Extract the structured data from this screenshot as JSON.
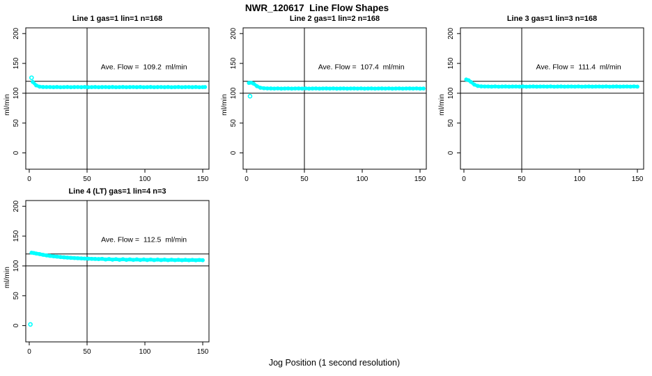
{
  "title": "NWR_120617  Line Flow Shapes",
  "x_axis_label": "Jog Position (1 second resolution)",
  "colors": {
    "points": "#00ffff",
    "axis": "#000000",
    "reference_lines": "#000000",
    "background": "#ffffff"
  },
  "chart_data": {
    "type": "scatter",
    "title": "NWR_120617  Line Flow Shapes",
    "xlabel": "Jog Position (1 second resolution)",
    "ylabel": "ml/min",
    "x_ticks": [
      0,
      50,
      100,
      150
    ],
    "y_ticks": [
      0,
      50,
      100,
      150,
      200
    ],
    "xlim": [
      -3,
      155.4
    ],
    "ylim": [
      -27.3,
      209.6
    ],
    "grid": false,
    "reference_lines": {
      "horizontal": [
        100,
        120
      ],
      "vertical": [
        50
      ]
    },
    "marker": "open-circle",
    "panels": [
      {
        "title": "Line 1 gas=1 lin=1 n=168",
        "annotation": "Ave. Flow =  109.2  ml/min",
        "ave_flow_ml_min": 109.2,
        "outliers": [
          [
            2,
            126
          ]
        ],
        "points": [
          [
            3,
            119
          ],
          [
            6,
            113.2
          ],
          [
            9,
            111
          ],
          [
            12,
            110.5
          ],
          [
            15,
            110.4
          ],
          [
            18,
            110.4
          ],
          [
            21,
            110.2
          ],
          [
            24,
            110.5
          ],
          [
            27,
            110.1
          ],
          [
            30,
            110.3
          ],
          [
            33,
            110.45
          ],
          [
            36,
            110.15
          ],
          [
            39,
            110.35
          ],
          [
            42,
            110.4
          ],
          [
            45,
            110.2
          ],
          [
            48,
            110.5
          ],
          [
            51,
            110.1
          ],
          [
            54,
            110.3
          ],
          [
            57,
            110.45
          ],
          [
            60,
            110.15
          ],
          [
            63,
            110.35
          ],
          [
            66,
            110.4
          ],
          [
            69,
            110.2
          ],
          [
            72,
            110.5
          ],
          [
            75,
            110.1
          ],
          [
            78,
            110.3
          ],
          [
            81,
            110.45
          ],
          [
            84,
            110.15
          ],
          [
            87,
            110.35
          ],
          [
            90,
            110.4
          ],
          [
            93,
            110.2
          ],
          [
            96,
            110.5
          ],
          [
            99,
            110.1
          ],
          [
            102,
            110.3
          ],
          [
            105,
            110.45
          ],
          [
            108,
            110.15
          ],
          [
            111,
            110.35
          ],
          [
            114,
            110.4
          ],
          [
            117,
            110.2
          ],
          [
            120,
            110.5
          ],
          [
            123,
            110.1
          ],
          [
            126,
            110.3
          ],
          [
            129,
            110.45
          ],
          [
            132,
            110.15
          ],
          [
            135,
            110.35
          ],
          [
            138,
            110.4
          ],
          [
            141,
            110.2
          ],
          [
            144,
            110.5
          ],
          [
            147,
            110.1
          ],
          [
            150,
            110.3
          ],
          [
            152,
            110.4
          ]
        ]
      },
      {
        "title": "Line 2 gas=1 lin=2 n=168",
        "annotation": "Ave. Flow =  107.4  ml/min",
        "ave_flow_ml_min": 107.4,
        "outliers": [
          [
            3,
            95
          ]
        ],
        "points": [
          [
            2,
            117.3
          ],
          [
            4,
            117.7
          ],
          [
            6,
            116.2
          ],
          [
            9,
            111.8
          ],
          [
            12,
            109.2
          ],
          [
            15,
            108.4
          ],
          [
            18,
            108.1
          ],
          [
            21,
            108
          ],
          [
            24,
            107.8
          ],
          [
            27,
            108.1
          ],
          [
            30,
            107.7
          ],
          [
            33,
            107.9
          ],
          [
            36,
            108.05
          ],
          [
            39,
            107.75
          ],
          [
            42,
            107.95
          ],
          [
            45,
            108
          ],
          [
            48,
            107.8
          ],
          [
            51,
            108.1
          ],
          [
            54,
            107.7
          ],
          [
            57,
            107.9
          ],
          [
            60,
            108.05
          ],
          [
            63,
            107.75
          ],
          [
            66,
            107.95
          ],
          [
            69,
            108
          ],
          [
            72,
            107.8
          ],
          [
            75,
            108.1
          ],
          [
            78,
            107.7
          ],
          [
            81,
            107.9
          ],
          [
            84,
            108.05
          ],
          [
            87,
            107.75
          ],
          [
            90,
            107.95
          ],
          [
            93,
            108
          ],
          [
            96,
            107.8
          ],
          [
            99,
            108.1
          ],
          [
            102,
            107.7
          ],
          [
            105,
            107.9
          ],
          [
            108,
            108.05
          ],
          [
            111,
            107.75
          ],
          [
            114,
            107.95
          ],
          [
            117,
            108
          ],
          [
            120,
            107.8
          ],
          [
            123,
            108.1
          ],
          [
            126,
            107.7
          ],
          [
            129,
            107.9
          ],
          [
            132,
            108.05
          ],
          [
            135,
            107.75
          ],
          [
            138,
            107.95
          ],
          [
            141,
            108
          ],
          [
            144,
            107.8
          ],
          [
            147,
            108.1
          ],
          [
            150,
            107.7
          ],
          [
            153,
            107.9
          ]
        ]
      },
      {
        "title": "Line 3 gas=1 lin=3 n=168",
        "annotation": "Ave. Flow =  111.4  ml/min",
        "ave_flow_ml_min": 111.4,
        "outliers": [],
        "points": [
          [
            2,
            123
          ],
          [
            4,
            121.8
          ],
          [
            6,
            119
          ],
          [
            9,
            114.5
          ],
          [
            12,
            112.2
          ],
          [
            15,
            111.5
          ],
          [
            18,
            111.3
          ],
          [
            21,
            111.3
          ],
          [
            24,
            111.1
          ],
          [
            27,
            111.4
          ],
          [
            30,
            111
          ],
          [
            33,
            111.2
          ],
          [
            36,
            111.35
          ],
          [
            39,
            111.05
          ],
          [
            42,
            111.25
          ],
          [
            45,
            111.3
          ],
          [
            48,
            111.1
          ],
          [
            51,
            111.4
          ],
          [
            54,
            111
          ],
          [
            57,
            111.2
          ],
          [
            60,
            111.35
          ],
          [
            63,
            111.05
          ],
          [
            66,
            111.25
          ],
          [
            69,
            111.3
          ],
          [
            72,
            111.1
          ],
          [
            75,
            111.4
          ],
          [
            78,
            111
          ],
          [
            81,
            111.2
          ],
          [
            84,
            111.35
          ],
          [
            87,
            111.05
          ],
          [
            90,
            111.25
          ],
          [
            93,
            111.3
          ],
          [
            96,
            111.1
          ],
          [
            99,
            111.4
          ],
          [
            102,
            111
          ],
          [
            105,
            111.2
          ],
          [
            108,
            111.35
          ],
          [
            111,
            111.05
          ],
          [
            114,
            111.25
          ],
          [
            117,
            111.3
          ],
          [
            120,
            111.1
          ],
          [
            123,
            111.4
          ],
          [
            126,
            111
          ],
          [
            129,
            111.2
          ],
          [
            132,
            111.35
          ],
          [
            135,
            111.05
          ],
          [
            138,
            111.25
          ],
          [
            141,
            111.3
          ],
          [
            144,
            111.1
          ],
          [
            147,
            111.4
          ],
          [
            150,
            111.1
          ]
        ]
      },
      {
        "title": "Line 4 (LT) gas=1 lin=4 n=3",
        "annotation": "Ave. Flow =  112.5  ml/min",
        "ave_flow_ml_min": 112.5,
        "outliers": [
          [
            1,
            2
          ]
        ],
        "points": [
          [
            2,
            122.2
          ],
          [
            4,
            121.6
          ],
          [
            6,
            120.8
          ],
          [
            9,
            119.8
          ],
          [
            12,
            118.6
          ],
          [
            15,
            117.6
          ],
          [
            18,
            116.8
          ],
          [
            21,
            116.1
          ],
          [
            24,
            115.5
          ],
          [
            27,
            114.9
          ],
          [
            30,
            114.4
          ],
          [
            33,
            113.9
          ],
          [
            36,
            113.5
          ],
          [
            39,
            113.2
          ],
          [
            42,
            112.9
          ],
          [
            45,
            112.6
          ],
          [
            48,
            112.3
          ],
          [
            51,
            112.1
          ],
          [
            54,
            111.9
          ],
          [
            57,
            111.7
          ],
          [
            60,
            111.5
          ],
          [
            63,
            111.9
          ],
          [
            66,
            110.8
          ],
          [
            69,
            111.6
          ],
          [
            72,
            110.5
          ],
          [
            75,
            111.3
          ],
          [
            78,
            110.3
          ],
          [
            81,
            111.2
          ],
          [
            84,
            110.2
          ],
          [
            87,
            111
          ],
          [
            90,
            110.1
          ],
          [
            93,
            110.9
          ],
          [
            96,
            110
          ],
          [
            99,
            110.8
          ],
          [
            102,
            109.9
          ],
          [
            105,
            110.7
          ],
          [
            108,
            109.8
          ],
          [
            111,
            110.6
          ],
          [
            114,
            109.8
          ],
          [
            117,
            110.5
          ],
          [
            120,
            109.7
          ],
          [
            123,
            110.4
          ],
          [
            126,
            109.7
          ],
          [
            129,
            110.3
          ],
          [
            132,
            109.6
          ],
          [
            135,
            110.2
          ],
          [
            138,
            109.6
          ],
          [
            141,
            110.1
          ],
          [
            144,
            109.5
          ],
          [
            147,
            110
          ],
          [
            150,
            109.6
          ]
        ]
      }
    ]
  }
}
